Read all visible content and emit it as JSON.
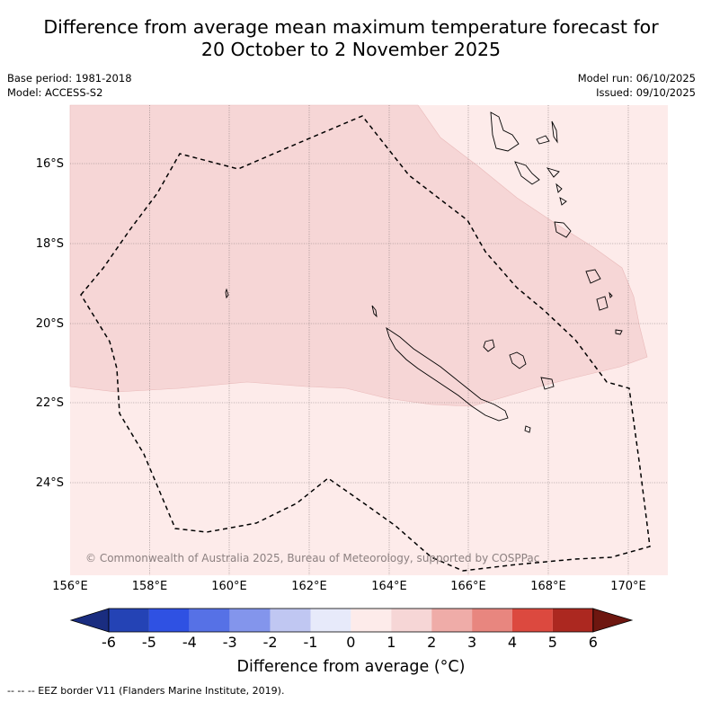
{
  "title": {
    "line1": "Difference from average mean maximum temperature forecast for",
    "line2": "20 October to 2 November 2025"
  },
  "meta": {
    "base_period": "Base period: 1981-2018",
    "model": "Model: ACCESS-S2",
    "model_run": "Model run: 06/10/2025",
    "issued": "Issued: 09/10/2025"
  },
  "map": {
    "latitude_labels": [
      "16°S",
      "18°S",
      "20°S",
      "22°S",
      "24°S"
    ],
    "longitude_labels": [
      "156°E",
      "158°E",
      "160°E",
      "162°E",
      "164°E",
      "166°E",
      "168°E",
      "170°E"
    ],
    "copyright": "© Commonwealth of Australia 2025, Bureau of Meteorology, supported by COSPPac",
    "category_colors": {
      "0_to_1": "#fdebea",
      "1_to_2": "#f6d6d6"
    }
  },
  "colorbar": {
    "ticks": [
      "-6",
      "-5",
      "-4",
      "-3",
      "-2",
      "-1",
      "0",
      "1",
      "2",
      "3",
      "4",
      "5",
      "6"
    ],
    "colors": [
      "#1a2d80",
      "#2443b5",
      "#2f51e3",
      "#5671e6",
      "#8395ec",
      "#c0c7f2",
      "#e7eafa",
      "#fdebea",
      "#f6d6d6",
      "#efaca8",
      "#e8867f",
      "#dc493f",
      "#ac2820",
      "#6e1710"
    ],
    "label": "Difference from average ($^\\circ$C)",
    "label_display": "Difference from average (°C)"
  },
  "footer": "--  --  -- EEZ border V11 (Flanders Marine Institute, 2019)."
}
